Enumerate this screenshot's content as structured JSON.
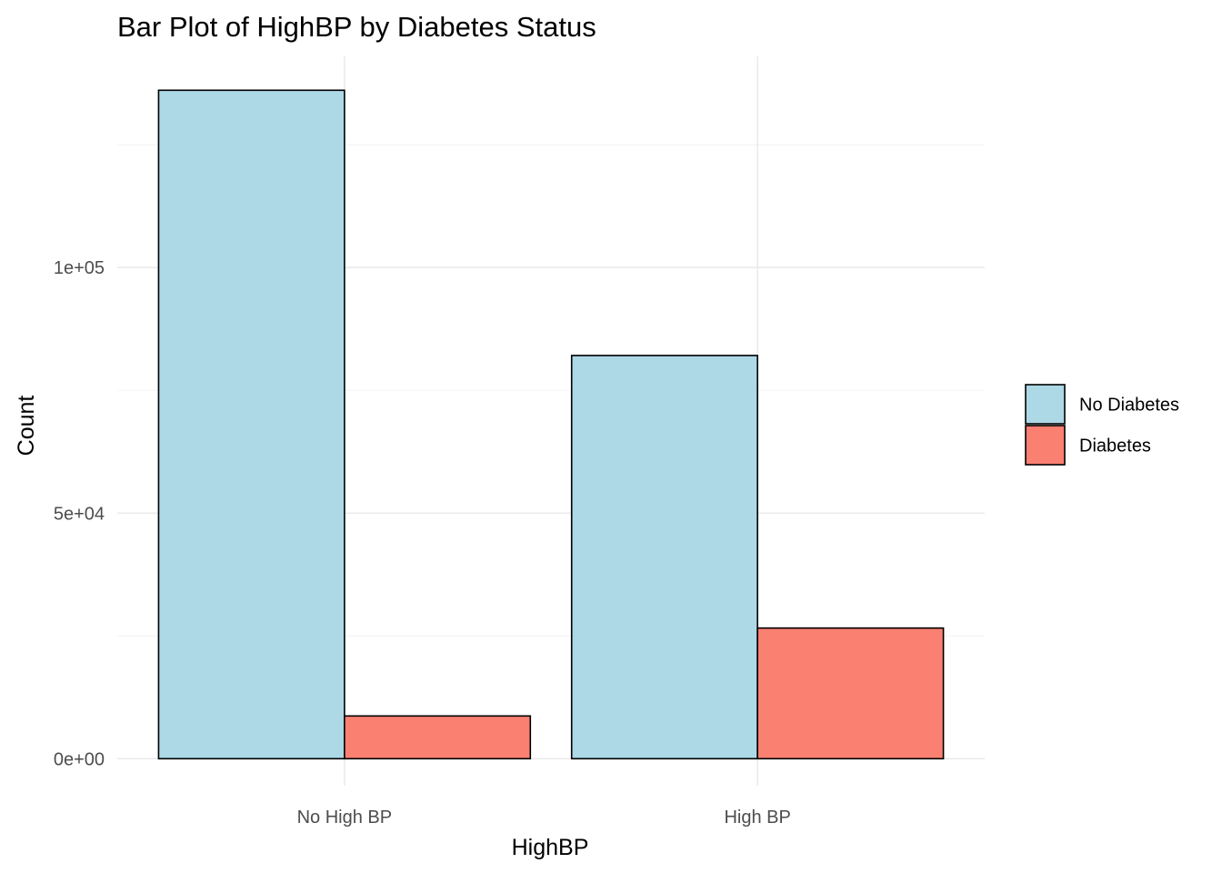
{
  "chart_data": {
    "type": "bar",
    "title": "Bar Plot of HighBP by Diabetes Status",
    "xlabel": "HighBP",
    "ylabel": "Count",
    "categories": [
      "No High BP",
      "High BP"
    ],
    "series": [
      {
        "name": "No Diabetes",
        "color": "#add8e6",
        "values": [
          136100,
          82100
        ]
      },
      {
        "name": "Diabetes",
        "color": "#fa8072",
        "values": [
          8700,
          26600
        ]
      }
    ],
    "yticks": [
      0,
      50000,
      100000
    ],
    "ytick_labels": [
      "0e+00",
      "5e+04",
      "1e+05"
    ],
    "ylim": [
      -5500,
      143000
    ],
    "grid": true,
    "legend_position": "right"
  }
}
